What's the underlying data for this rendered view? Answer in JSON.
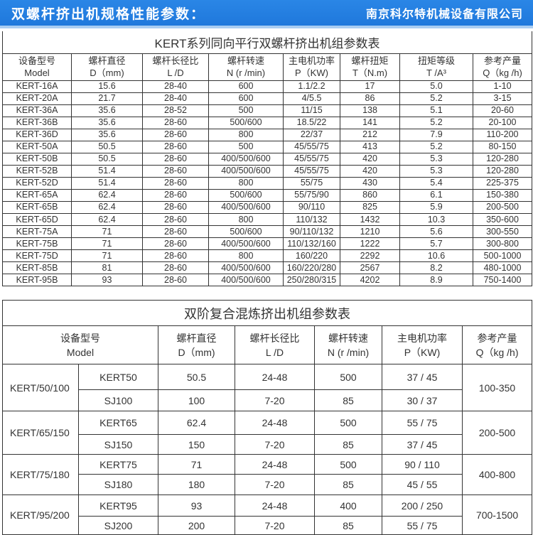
{
  "banner": {
    "title": "双螺杆挤出机规格性能参数："
  },
  "table1": {
    "title": "KERT系列同向平行双螺杆挤出机组参数表",
    "headers": [
      [
        "设备型号",
        "Model"
      ],
      [
        "螺杆直径",
        "D（mm)"
      ],
      [
        "螺杆长径比",
        "L /D"
      ],
      [
        "螺杆转速",
        "N (r /min)"
      ],
      [
        "主电机功率",
        "P（KW)"
      ],
      [
        "螺杆扭矩",
        "T（N.m)"
      ],
      [
        "扭矩等级",
        "T /A³"
      ],
      [
        "参考产量",
        "Q（kg /h)"
      ]
    ],
    "rows": [
      [
        "KERT-16A",
        "15.6",
        "28-40",
        "600",
        "1.1/2.2",
        "17",
        "5.0",
        "1-10"
      ],
      [
        "KERT-20A",
        "21.7",
        "28-40",
        "600",
        "4/5.5",
        "86",
        "5.2",
        "3-15"
      ],
      [
        "KERT-36A",
        "35.6",
        "28-52",
        "500",
        "11/15",
        "138",
        "5.1",
        "20-60"
      ],
      [
        "KERT-36B",
        "35.6",
        "28-60",
        "500/600",
        "18.5/22",
        "141",
        "5.2",
        "20-100"
      ],
      [
        "KERT-36D",
        "35.6",
        "28-60",
        "800",
        "22/37",
        "212",
        "7.9",
        "110-200"
      ],
      [
        "KERT-50A",
        "50.5",
        "28-60",
        "500",
        "45/55/75",
        "413",
        "5.2",
        "80-150"
      ],
      [
        "KERT-50B",
        "50.5",
        "28-60",
        "400/500/600",
        "45/55/75",
        "420",
        "5.3",
        "120-280"
      ],
      [
        "KERT-52B",
        "51.4",
        "28-60",
        "400/500/600",
        "45/55/75",
        "420",
        "5.3",
        "120-280"
      ],
      [
        "KERT-52D",
        "51.4",
        "28-60",
        "800",
        "55/75",
        "430",
        "5.4",
        "225-375"
      ],
      [
        "KERT-65A",
        "62.4",
        "28-60",
        "500/600",
        "55/75/90",
        "860",
        "6.1",
        "150-380"
      ],
      [
        "KERT-65B",
        "62.4",
        "28-60",
        "400/500/600",
        "90/110",
        "825",
        "5.9",
        "200-500"
      ],
      [
        "KERT-65D",
        "62.4",
        "28-60",
        "800",
        "110/132",
        "1432",
        "10.3",
        "350-600"
      ],
      [
        "KERT-75A",
        "71",
        "28-60",
        "500/600",
        "90/110/132",
        "1210",
        "5.6",
        "300-550"
      ],
      [
        "KERT-75B",
        "71",
        "28-60",
        "400/500/600",
        "110/132/160",
        "1222",
        "5.7",
        "300-800"
      ],
      [
        "KERT-75D",
        "71",
        "28-60",
        "800",
        "160/220",
        "2292",
        "10.6",
        "500-1000"
      ],
      [
        "KERT-85B",
        "81",
        "28-60",
        "400/500/600",
        "160/220/280",
        "2567",
        "8.2",
        "480-1000"
      ],
      [
        "KERT-95B",
        "93",
        "28-60",
        "400/500/600",
        "250/280/315",
        "4202",
        "8.9",
        "750-1400"
      ]
    ]
  },
  "table2": {
    "title": "双阶复合混炼挤出机组参数表",
    "headers": [
      [
        "设备型号",
        "Model"
      ],
      [
        "螺杆直径",
        "D（mm)"
      ],
      [
        "螺杆长径比",
        "L /D"
      ],
      [
        "螺杆转速",
        "N (r /min)"
      ],
      [
        "主电机功率",
        "P（KW)"
      ],
      [
        "参考产量",
        "Q（kg /h)"
      ]
    ],
    "groups": [
      {
        "model": "KERT/50/100",
        "output": "100-350",
        "rows": [
          [
            "KERT50",
            "50.5",
            "24-48",
            "500",
            "37 / 45"
          ],
          [
            "SJ100",
            "100",
            "7-20",
            "85",
            "30 / 37"
          ]
        ]
      },
      {
        "model": "KERT/65/150",
        "output": "200-500",
        "rows": [
          [
            "KERT65",
            "62.4",
            "24-48",
            "500",
            "55 / 75"
          ],
          [
            "SJ150",
            "150",
            "7-20",
            "85",
            "37 / 45"
          ]
        ]
      },
      {
        "model": "KERT/75/180",
        "output": "400-800",
        "rows": [
          [
            "KERT75",
            "71",
            "24-48",
            "500",
            "90 / 110"
          ],
          [
            "SJ180",
            "180",
            "7-20",
            "85",
            "45 / 55"
          ]
        ]
      },
      {
        "model": "KERT/95/200",
        "output": "700-1500",
        "rows": [
          [
            "KERT95",
            "93",
            "24-48",
            "400",
            "200 / 250"
          ],
          [
            "SJ200",
            "200",
            "7-20",
            "85",
            "55 / 75"
          ]
        ]
      }
    ]
  },
  "watermark": "南京科尔特机械设备有限公司"
}
